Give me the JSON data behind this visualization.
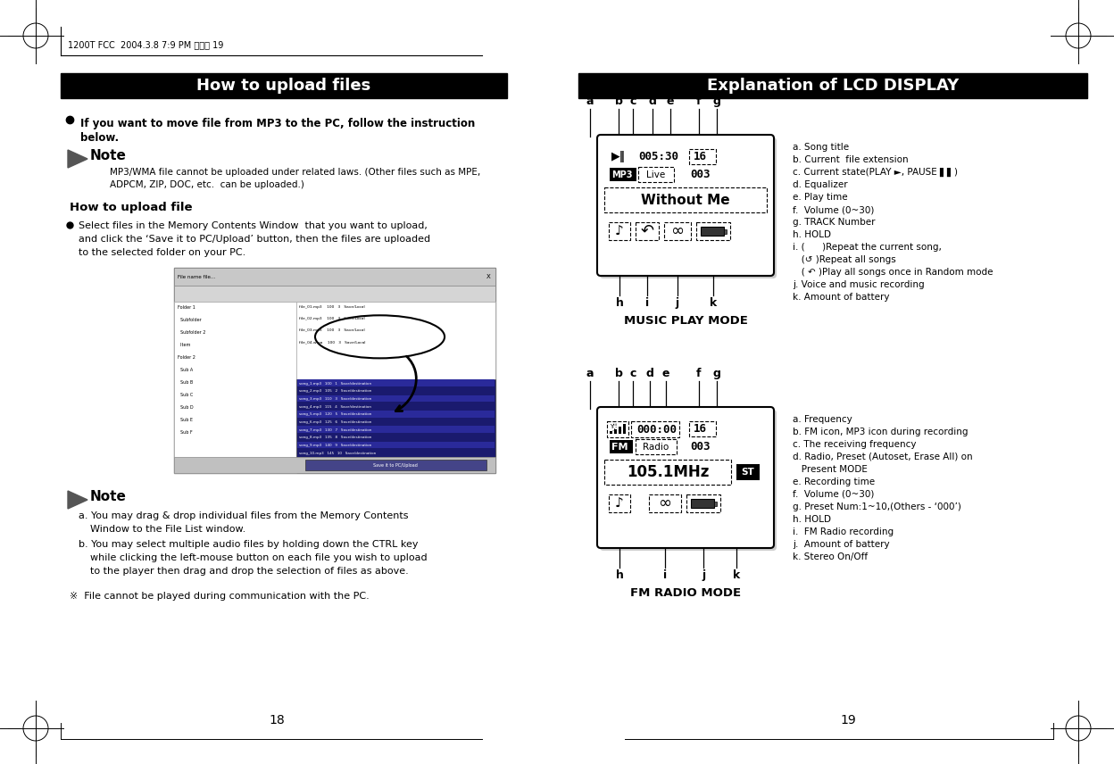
{
  "bg_color": "#ffffff",
  "header_text": "1200T FCC  2004.3.8 7:9 PM 페이지 19",
  "left_title": "How to upload files",
  "right_title": "Explanation of LCD DISPLAY",
  "page_left": "18",
  "page_right": "19",
  "music_mode_label": "MUSIC PLAY MODE",
  "fm_mode_label": "FM RADIO MODE",
  "music_labels_top": [
    "a",
    "b",
    "c",
    "d",
    "e",
    "f",
    "g"
  ],
  "music_labels_bottom": [
    "h",
    "i",
    "j",
    "k"
  ],
  "fm_labels_top": [
    "a",
    "b",
    "c",
    "d",
    "e",
    "f",
    "g"
  ],
  "fm_labels_bottom": [
    "h",
    "i",
    "j",
    "k"
  ],
  "music_desc": [
    "a. Song title",
    "b. Current  file extension",
    "c. Current state(PLAY ►, PAUSE ▌▌)",
    "d. Equalizer",
    "e. Play time     ",
    "f.  Volume (0~30)",
    "g. TRACK Number  ",
    "h. HOLD",
    "i. (      )Repeat the current song,",
    "   (↺ )Repeat all songs",
    "   ( ↶ )Play all songs once in Random mode",
    "j. Voice and music recording",
    "k. Amount of battery"
  ],
  "fm_desc": [
    "a. Frequency",
    "b. FM icon, MP3 icon during recording",
    "c. The receiving frequency",
    "d. Radio, Preset (Autoset, Erase All) on",
    "   Present MODE",
    "e. Recording time      ",
    "f.  Volume (0~30)",
    "g. Preset Num:1~10,(Others - ‘000’)",
    "h. HOLD",
    "i.  FM Radio recording",
    "j.  Amount of battery",
    "k. Stereo On/Off"
  ]
}
